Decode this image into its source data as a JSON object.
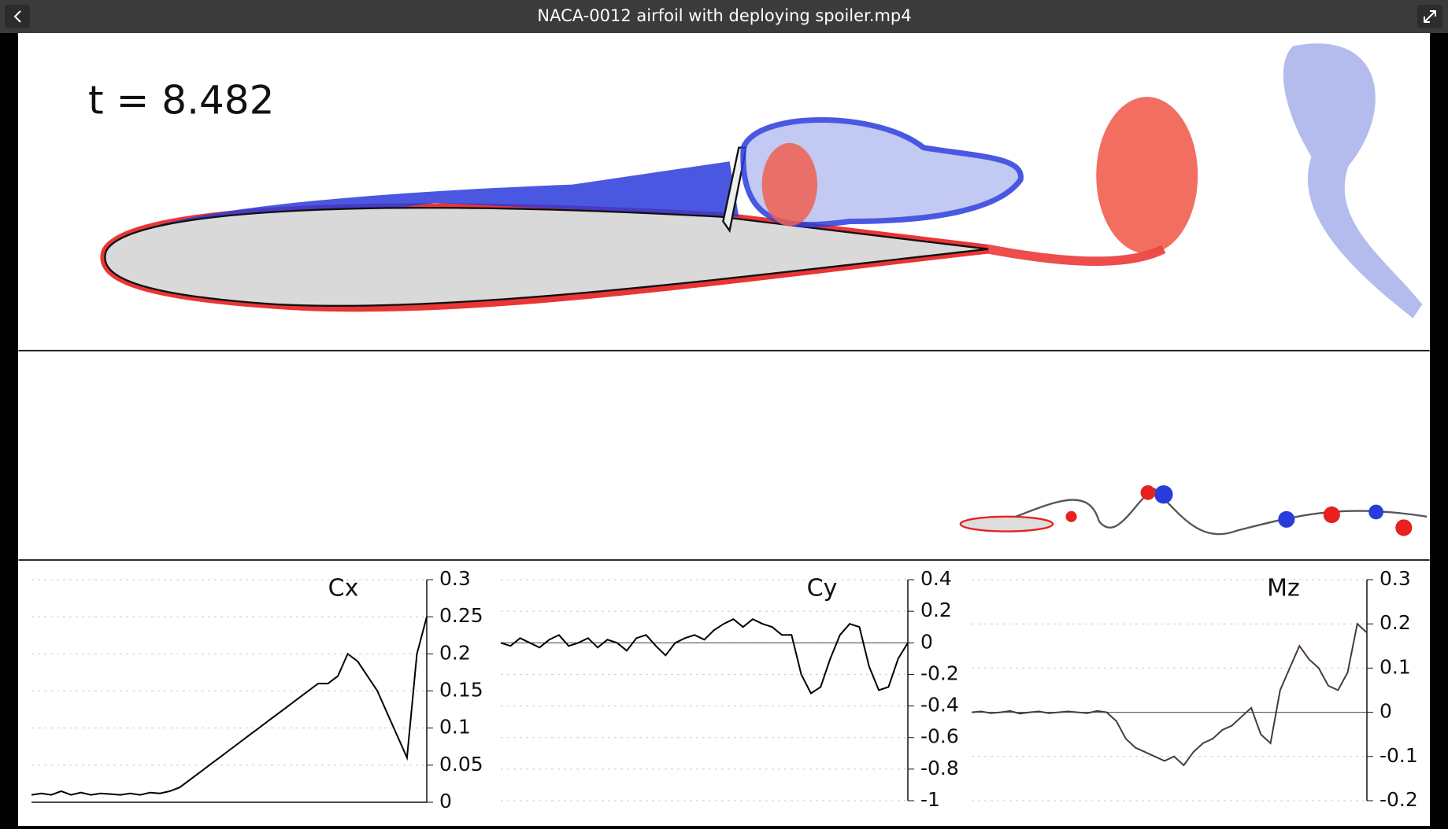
{
  "window": {
    "title": "NACA-0012 airfoil with deploying spoiler.mp4"
  },
  "frame": {
    "time_label": "t = 8.482"
  },
  "chart_data": [
    {
      "type": "line",
      "title": "Cx",
      "color": "#000000",
      "values": [
        0.01,
        0.012,
        0.01,
        0.015,
        0.01,
        0.013,
        0.01,
        0.012,
        0.011,
        0.01,
        0.012,
        0.01,
        0.013,
        0.012,
        0.015,
        0.02,
        0.03,
        0.04,
        0.05,
        0.06,
        0.07,
        0.08,
        0.09,
        0.1,
        0.11,
        0.12,
        0.13,
        0.14,
        0.15,
        0.16,
        0.16,
        0.17,
        0.2,
        0.19,
        0.17,
        0.15,
        0.12,
        0.09,
        0.06,
        0.2,
        0.25
      ],
      "ylim": [
        0,
        0.3
      ],
      "yticks": [
        0,
        0.05,
        0.1,
        0.15,
        0.2,
        0.25,
        0.3
      ],
      "grid": true,
      "zero_line": false
    },
    {
      "type": "line",
      "title": "Cy",
      "color": "#000000",
      "values": [
        0,
        -0.02,
        0.03,
        0,
        -0.03,
        0.02,
        0.05,
        -0.02,
        0,
        0.03,
        -0.03,
        0.02,
        0,
        -0.05,
        0.03,
        0.05,
        -0.02,
        -0.08,
        0,
        0.03,
        0.05,
        0.02,
        0.08,
        0.12,
        0.15,
        0.1,
        0.15,
        0.12,
        0.1,
        0.05,
        0.05,
        -0.2,
        -0.32,
        -0.28,
        -0.1,
        0.05,
        0.12,
        0.1,
        -0.15,
        -0.3,
        -0.28,
        -0.1,
        0
      ],
      "ylim": [
        -1,
        0.4
      ],
      "yticks": [
        -1,
        -0.8,
        -0.6,
        -0.4,
        -0.2,
        0,
        0.2,
        0.4
      ],
      "grid": true,
      "zero_line": true
    },
    {
      "type": "line",
      "title": "Mz",
      "color": "#4a3a3a",
      "values": [
        0,
        0.002,
        -0.002,
        0,
        0.003,
        -0.003,
        0,
        0.002,
        -0.002,
        0,
        0.002,
        0,
        -0.002,
        0.003,
        0,
        -0.02,
        -0.06,
        -0.08,
        -0.09,
        -0.1,
        -0.11,
        -0.1,
        -0.12,
        -0.09,
        -0.07,
        -0.06,
        -0.04,
        -0.03,
        -0.01,
        0.01,
        -0.05,
        -0.07,
        0.05,
        0.1,
        0.15,
        0.12,
        0.1,
        0.06,
        0.05,
        0.09,
        0.2,
        0.18
      ],
      "ylim": [
        -0.2,
        0.3
      ],
      "yticks": [
        -0.2,
        -0.1,
        0,
        0.1,
        0.2,
        0.3
      ],
      "grid": true,
      "zero_line": true
    }
  ]
}
